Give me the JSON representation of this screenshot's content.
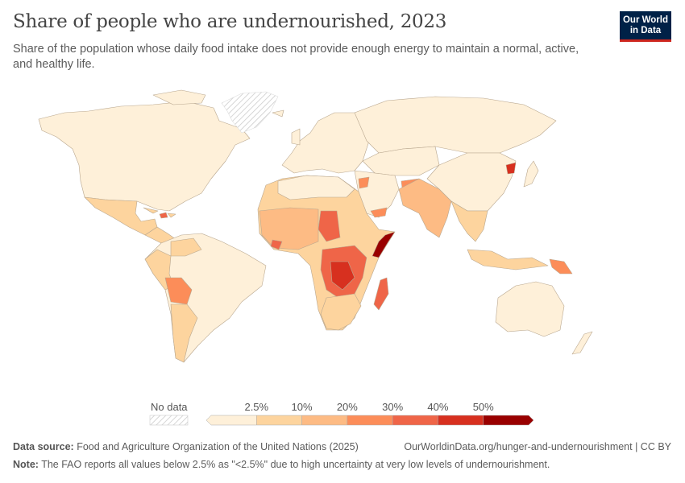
{
  "header": {
    "title": "Share of people who are undernourished, 2023",
    "subtitle": "Share of the population whose daily food intake does not provide enough energy to maintain a normal, active, and healthy life.",
    "logo_text": "Our World in Data"
  },
  "chart_data": {
    "type": "map",
    "title": "Share of people who are undernourished, 2023",
    "year": 2023,
    "unit": "%",
    "legend": {
      "no_data_label": "No data",
      "tick_labels": [
        "2.5%",
        "10%",
        "20%",
        "30%",
        "40%",
        "50%"
      ],
      "bins": [
        {
          "range": "<2.5%",
          "color": "#fef0d9"
        },
        {
          "range": "2.5–10%",
          "color": "#fdd49e"
        },
        {
          "range": "10–20%",
          "color": "#fdbb84"
        },
        {
          "range": "20–30%",
          "color": "#fc8d59"
        },
        {
          "range": "30–40%",
          "color": "#ef6548"
        },
        {
          "range": "40–50%",
          "color": "#d7301f"
        },
        {
          "range": ">50%",
          "color": "#990000"
        }
      ],
      "no_data_color": "#e0e0e0"
    }
  },
  "footer": {
    "source_label": "Data source:",
    "source_text": "Food and Agriculture Organization of the United Nations (2025)",
    "url_text": "OurWorldinData.org/hunger-and-undernourishment | CC BY",
    "note_label": "Note:",
    "note_text": "The FAO reports all values below 2.5% as \"<2.5%\" due to high uncertainty at very low levels of undernourishment."
  }
}
